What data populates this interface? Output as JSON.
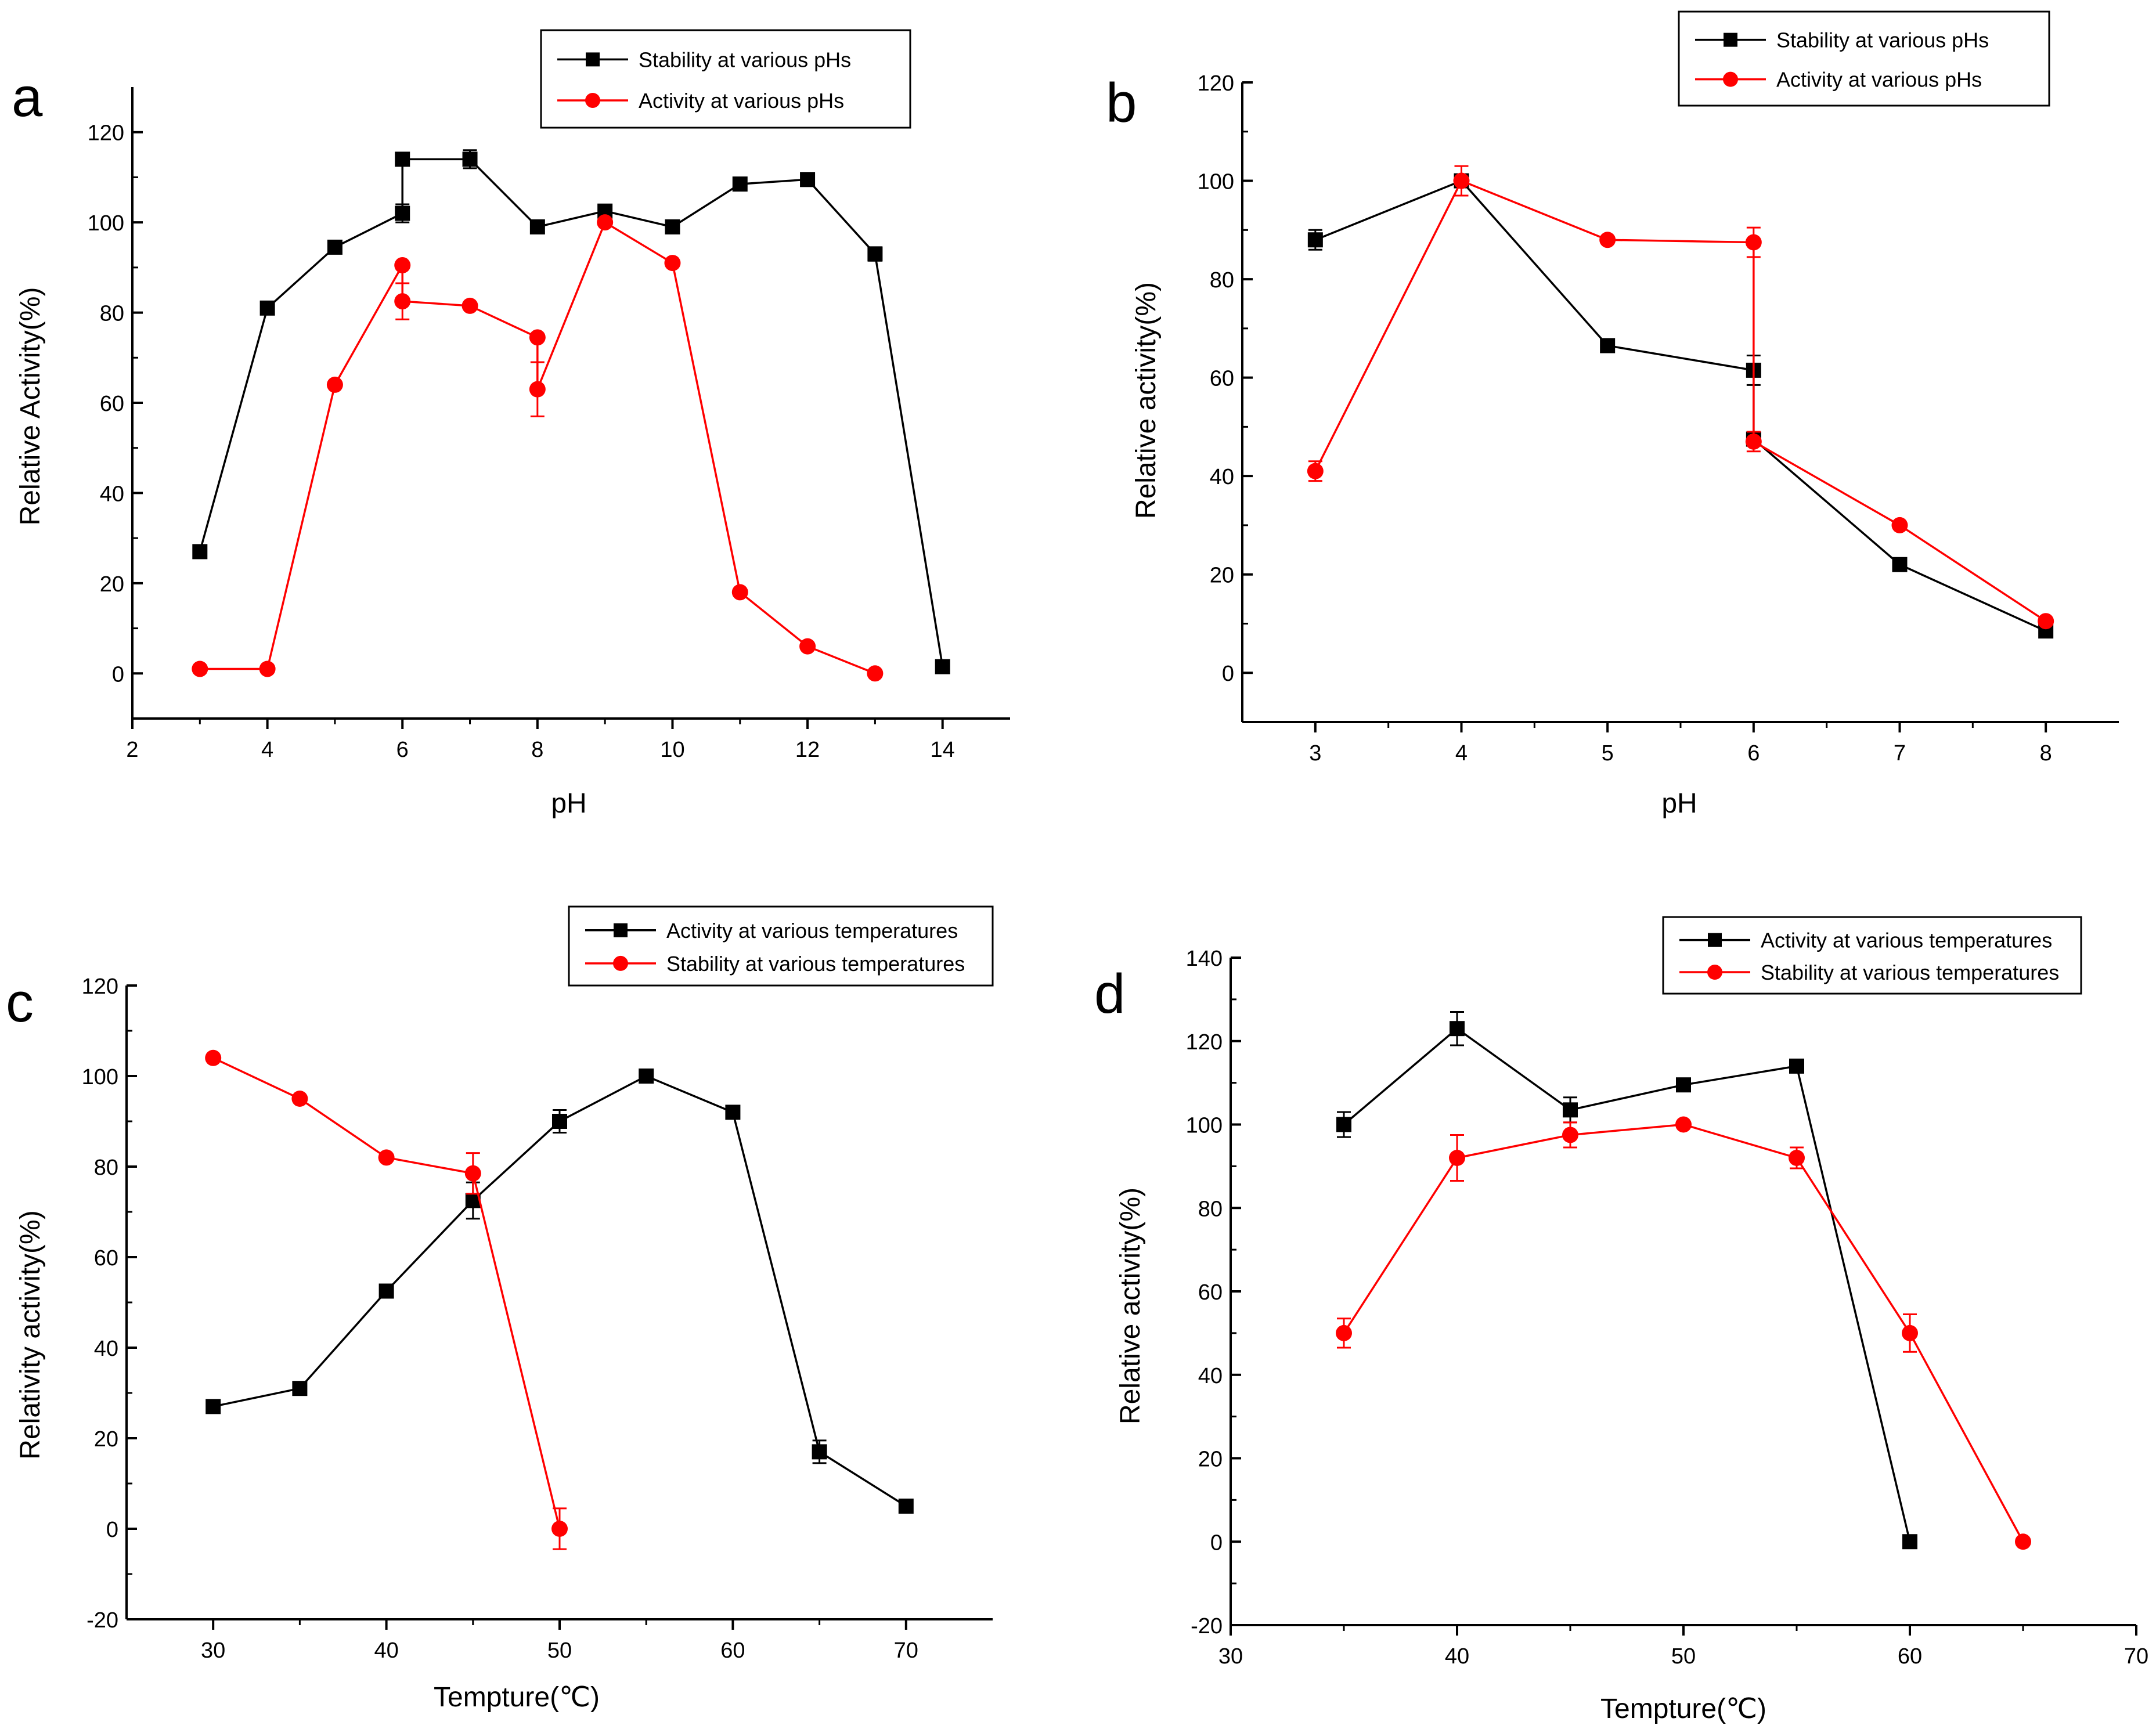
{
  "figure": {
    "colors": {
      "series_black": "#000000",
      "series_red": "#ff0000",
      "axis": "#000000"
    }
  },
  "chart_data": [
    {
      "id": "a",
      "panel_label": "a",
      "type": "line",
      "xlabel": "pH",
      "ylabel": "Relative Activity(%)",
      "xlim": [
        2,
        15
      ],
      "ylim": [
        -10,
        130
      ],
      "xticks": [
        2,
        4,
        6,
        8,
        10,
        12,
        14
      ],
      "yticks": [
        0,
        20,
        40,
        60,
        80,
        100,
        120
      ],
      "x_tick_labels": [
        "2",
        "4",
        "6",
        "8",
        "10",
        "12",
        "14"
      ],
      "y_tick_labels": [
        "0",
        "20",
        "40",
        "60",
        "80",
        "100",
        "120"
      ],
      "series": [
        {
          "name": "Stability at various pHs",
          "color": "#000000",
          "marker": "square",
          "points": [
            {
              "x": 3,
              "y": 27,
              "err": 0
            },
            {
              "x": 4,
              "y": 81,
              "err": 0
            },
            {
              "x": 5,
              "y": 94.5,
              "err": 0
            },
            {
              "x": 6,
              "y": 102,
              "err": 2
            },
            {
              "x": 6,
              "y": 114,
              "err": 0
            },
            {
              "x": 7,
              "y": 114,
              "err": 2
            },
            {
              "x": 8,
              "y": 99,
              "err": 0
            },
            {
              "x": 9,
              "y": 102.5,
              "err": 0
            },
            {
              "x": 10,
              "y": 99,
              "err": 0
            },
            {
              "x": 11,
              "y": 108.5,
              "err": 0
            },
            {
              "x": 12,
              "y": 109.5,
              "err": 0
            },
            {
              "x": 13,
              "y": 93,
              "err": 1.5
            },
            {
              "x": 14,
              "y": 1.5,
              "err": 0
            }
          ]
        },
        {
          "name": "Activity at various pHs",
          "color": "#ff0000",
          "marker": "circle",
          "points": [
            {
              "x": 3,
              "y": 1,
              "err": 0
            },
            {
              "x": 4,
              "y": 1,
              "err": 0
            },
            {
              "x": 5,
              "y": 64,
              "err": 0
            },
            {
              "x": 6,
              "y": 90.5,
              "err": 0
            },
            {
              "x": 6,
              "y": 82.5,
              "err": 4
            },
            {
              "x": 7,
              "y": 81.5,
              "err": 0
            },
            {
              "x": 8,
              "y": 74.5,
              "err": 0
            },
            {
              "x": 8,
              "y": 63,
              "err": 6
            },
            {
              "x": 9,
              "y": 100,
              "err": 0
            },
            {
              "x": 10,
              "y": 91,
              "err": 0
            },
            {
              "x": 11,
              "y": 18,
              "err": 0
            },
            {
              "x": 12,
              "y": 6,
              "err": 0
            },
            {
              "x": 13,
              "y": 0,
              "err": 0
            }
          ]
        }
      ],
      "legend": {
        "placement": "top-right"
      }
    },
    {
      "id": "b",
      "panel_label": "b",
      "type": "line",
      "xlabel": "pH",
      "ylabel": "Relative activity(%)",
      "xlim": [
        2.5,
        8.5
      ],
      "ylim": [
        -10,
        120
      ],
      "xticks": [
        3,
        4,
        5,
        6,
        7,
        8
      ],
      "yticks": [
        0,
        20,
        40,
        60,
        80,
        100,
        120
      ],
      "x_tick_labels": [
        "3",
        "4",
        "5",
        "6",
        "7",
        "8"
      ],
      "y_tick_labels": [
        "0",
        "20",
        "40",
        "60",
        "80",
        "100",
        "120"
      ],
      "series": [
        {
          "name": "Stability at various pHs",
          "color": "#000000",
          "marker": "square",
          "points": [
            {
              "x": 3,
              "y": 88,
              "err": 2
            },
            {
              "x": 4,
              "y": 100,
              "err": 0
            },
            {
              "x": 5,
              "y": 66.5,
              "err": 0
            },
            {
              "x": 6,
              "y": 61.5,
              "err": 3
            },
            {
              "x": 6,
              "y": 47.5,
              "err": 0
            },
            {
              "x": 7,
              "y": 22,
              "err": 0
            },
            {
              "x": 8,
              "y": 8.5,
              "err": 0
            }
          ]
        },
        {
          "name": "Activity at various pHs",
          "color": "#ff0000",
          "marker": "circle",
          "points": [
            {
              "x": 3,
              "y": 41,
              "err": 2
            },
            {
              "x": 4,
              "y": 100,
              "err": 3
            },
            {
              "x": 5,
              "y": 88,
              "err": 0
            },
            {
              "x": 6,
              "y": 87.5,
              "err": 3
            },
            {
              "x": 6,
              "y": 47,
              "err": 2
            },
            {
              "x": 7,
              "y": 30,
              "err": 0
            },
            {
              "x": 8,
              "y": 10.5,
              "err": 0
            }
          ]
        }
      ],
      "legend": {
        "placement": "top-right"
      }
    },
    {
      "id": "c",
      "panel_label": "c",
      "type": "line",
      "xlabel": "Tempture(℃)",
      "ylabel": "Relativity activity(%)",
      "xlim": [
        25,
        75
      ],
      "ylim": [
        -20,
        120
      ],
      "xticks": [
        30,
        40,
        50,
        60,
        70
      ],
      "yticks": [
        -20,
        0,
        20,
        40,
        60,
        80,
        100,
        120
      ],
      "x_tick_labels": [
        "30",
        "40",
        "50",
        "60",
        "70"
      ],
      "y_tick_labels": [
        "-20",
        "0",
        "20",
        "40",
        "60",
        "80",
        "100",
        "120"
      ],
      "series": [
        {
          "name": "Activity at various temperatures",
          "color": "#000000",
          "marker": "square",
          "points": [
            {
              "x": 30,
              "y": 27,
              "err": 0
            },
            {
              "x": 35,
              "y": 31,
              "err": 0
            },
            {
              "x": 40,
              "y": 52.5,
              "err": 0
            },
            {
              "x": 45,
              "y": 72.5,
              "err": 4
            },
            {
              "x": 50,
              "y": 90,
              "err": 2.5
            },
            {
              "x": 55,
              "y": 100,
              "err": 0
            },
            {
              "x": 60,
              "y": 92,
              "err": 0
            },
            {
              "x": 65,
              "y": 17,
              "err": 2.5
            },
            {
              "x": 70,
              "y": 5,
              "err": 0
            }
          ]
        },
        {
          "name": "Stability at various temperatures",
          "color": "#ff0000",
          "marker": "circle",
          "points": [
            {
              "x": 30,
              "y": 104,
              "err": 0
            },
            {
              "x": 35,
              "y": 95,
              "err": 0
            },
            {
              "x": 40,
              "y": 82,
              "err": 0
            },
            {
              "x": 45,
              "y": 78.5,
              "err": 4.5
            },
            {
              "x": 50,
              "y": 0,
              "err": 4.5
            }
          ]
        }
      ],
      "legend": {
        "placement": "top-right"
      }
    },
    {
      "id": "d",
      "panel_label": "d",
      "type": "line",
      "xlabel": "Tempture(℃)",
      "ylabel": "Relative activity(%)",
      "xlim": [
        30,
        70
      ],
      "ylim": [
        -20,
        140
      ],
      "xticks": [
        30,
        40,
        50,
        60,
        70
      ],
      "yticks": [
        -20,
        0,
        20,
        40,
        60,
        80,
        100,
        120,
        140
      ],
      "x_tick_labels": [
        "30",
        "40",
        "50",
        "60",
        "70"
      ],
      "y_tick_labels": [
        "-20",
        "0",
        "20",
        "40",
        "60",
        "80",
        "100",
        "120",
        "140"
      ],
      "series": [
        {
          "name": "Activity at various temperatures",
          "color": "#000000",
          "marker": "square",
          "points": [
            {
              "x": 35,
              "y": 100,
              "err": 3
            },
            {
              "x": 40,
              "y": 123,
              "err": 4
            },
            {
              "x": 45,
              "y": 103.5,
              "err": 3
            },
            {
              "x": 50,
              "y": 109.5,
              "err": 0
            },
            {
              "x": 55,
              "y": 114,
              "err": 0
            },
            {
              "x": 60,
              "y": 0,
              "err": 0
            }
          ]
        },
        {
          "name": "Stability at various temperatures",
          "color": "#ff0000",
          "marker": "circle",
          "points": [
            {
              "x": 35,
              "y": 50,
              "err": 3.5
            },
            {
              "x": 40,
              "y": 92,
              "err": 5.5
            },
            {
              "x": 45,
              "y": 97.5,
              "err": 3
            },
            {
              "x": 50,
              "y": 100,
              "err": 0
            },
            {
              "x": 55,
              "y": 92,
              "err": 2.5
            },
            {
              "x": 60,
              "y": 50,
              "err": 4.5
            },
            {
              "x": 65,
              "y": 0,
              "err": 0
            }
          ]
        }
      ],
      "legend": {
        "placement": "top-right"
      }
    }
  ]
}
